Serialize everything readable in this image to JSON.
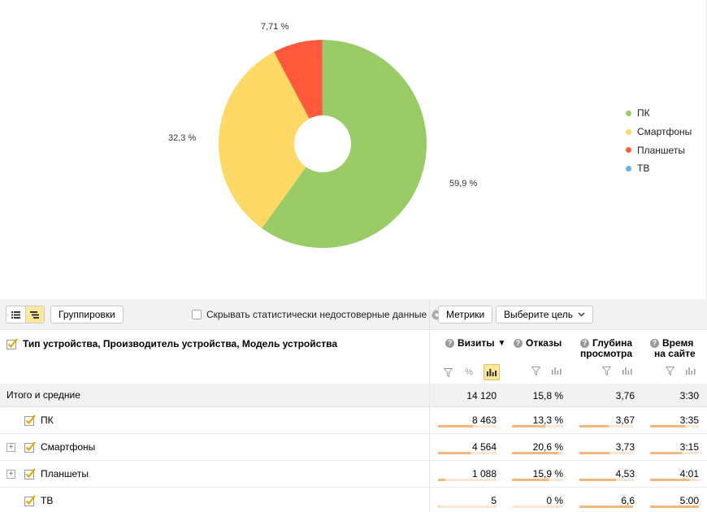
{
  "chart": {
    "legend": [
      {
        "label": "ПК",
        "color": "#99cc66"
      },
      {
        "label": "Смартфоны",
        "color": "#ffd966"
      },
      {
        "label": "Планшеты",
        "color": "#ff5a3c"
      },
      {
        "label": "ТВ",
        "color": "#6ab0e6"
      }
    ],
    "labels": {
      "pc": "59,9 %",
      "smartphones": "32,3 %",
      "tablets": "7,71 %"
    }
  },
  "chart_data": {
    "type": "pie",
    "categories": [
      "ПК",
      "Смартфоны",
      "Планшеты",
      "ТВ"
    ],
    "values": [
      59.9,
      32.3,
      7.71,
      0.04
    ],
    "colors": [
      "#99cc66",
      "#ffd966",
      "#ff5a3c",
      "#6ab0e6"
    ],
    "donut": true,
    "legend_position": "right"
  },
  "toolbar": {
    "groupings_label": "Группировки",
    "hide_label": "Скрывать статистически недостоверные данные",
    "metrics_label": "Метрики",
    "goal_label": "Выберите цель"
  },
  "table": {
    "dimension_header": "Тип устройства, Производитель устройства, Модель устройства",
    "columns": [
      {
        "line1": "Визиты",
        "line2": "",
        "sort": "▼"
      },
      {
        "line1": "Отказы",
        "line2": "",
        "sort": ""
      },
      {
        "line1": "Глубина",
        "line2": "просмотра",
        "sort": ""
      },
      {
        "line1": "Время",
        "line2": "на сайте",
        "sort": ""
      }
    ],
    "total": {
      "label": "Итого и средние",
      "values": [
        "14 120",
        "15,8 %",
        "3,76",
        "3:30"
      ]
    },
    "rows": [
      {
        "label": "ПК",
        "values": [
          "8 463",
          "13,3 %",
          "3,67",
          "3:35"
        ],
        "bars": [
          0.6,
          0.65,
          0.55,
          0.72
        ]
      },
      {
        "label": "Смартфоны",
        "values": [
          "4 564",
          "20,6 %",
          "3,73",
          "3:15"
        ],
        "bars": [
          0.55,
          0.9,
          0.56,
          0.65
        ]
      },
      {
        "label": "Планшеты",
        "values": [
          "1 088",
          "15,9 %",
          "4,53",
          "4:01"
        ],
        "bars": [
          0.12,
          0.72,
          0.68,
          0.8
        ]
      },
      {
        "label": "ТВ",
        "values": [
          "5",
          "0 %",
          "6,6",
          "5:00"
        ],
        "bars": [
          0.01,
          0.0,
          1.0,
          1.0
        ]
      }
    ]
  }
}
